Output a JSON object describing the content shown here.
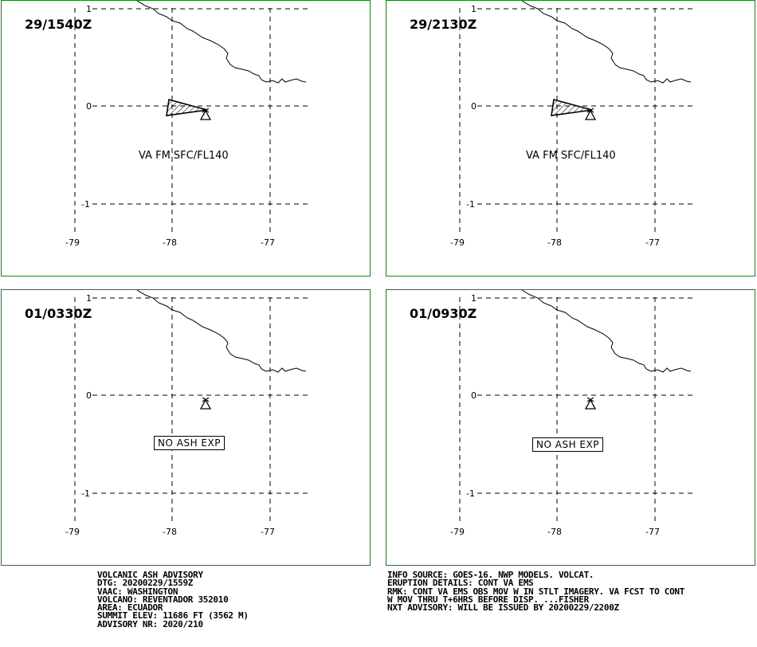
{
  "panels": [
    {
      "time": "29/1540Z",
      "label": "VA FM SFC/FL140",
      "ash": true
    },
    {
      "time": "29/2130Z",
      "label": "VA FM SFC/FL140",
      "ash": true
    },
    {
      "time": "01/0330Z",
      "label": "NO ASH EXP",
      "ash": false
    },
    {
      "time": "01/0930Z",
      "label": "NO ASH EXP",
      "ash": false
    }
  ],
  "axes": {
    "lat_ticks": [
      "1",
      "0",
      "-1"
    ],
    "lon_ticks": [
      "-79",
      "-78",
      "-77"
    ]
  },
  "advisory_left": [
    "VOLCANIC ASH ADVISORY",
    "DTG: 20200229/1559Z",
    "VAAC: WASHINGTON",
    "VOLCANO: REVENTADOR 352010",
    "AREA: ECUADOR",
    "SUMMIT ELEV: 11686 FT (3562 M)",
    "ADVISORY NR: 2020/210"
  ],
  "advisory_right": [
    "INFO SOURCE: GOES-16. NWP MODELS. VOLCAT.",
    "ERUPTION DETAILS: CONT VA EMS",
    "RMK: CONT VA EMS OBS MOV W IN STLT IMAGERY. VA FCST TO CONT",
    "W MOV THRU T+6HRS BEFORE DISP. ...FISHER",
    "NXT ADVISORY: WILL BE ISSUED BY 20200229/2200Z"
  ],
  "colors": {
    "panel_border": "#1a7a1a",
    "ink": "#000000"
  }
}
